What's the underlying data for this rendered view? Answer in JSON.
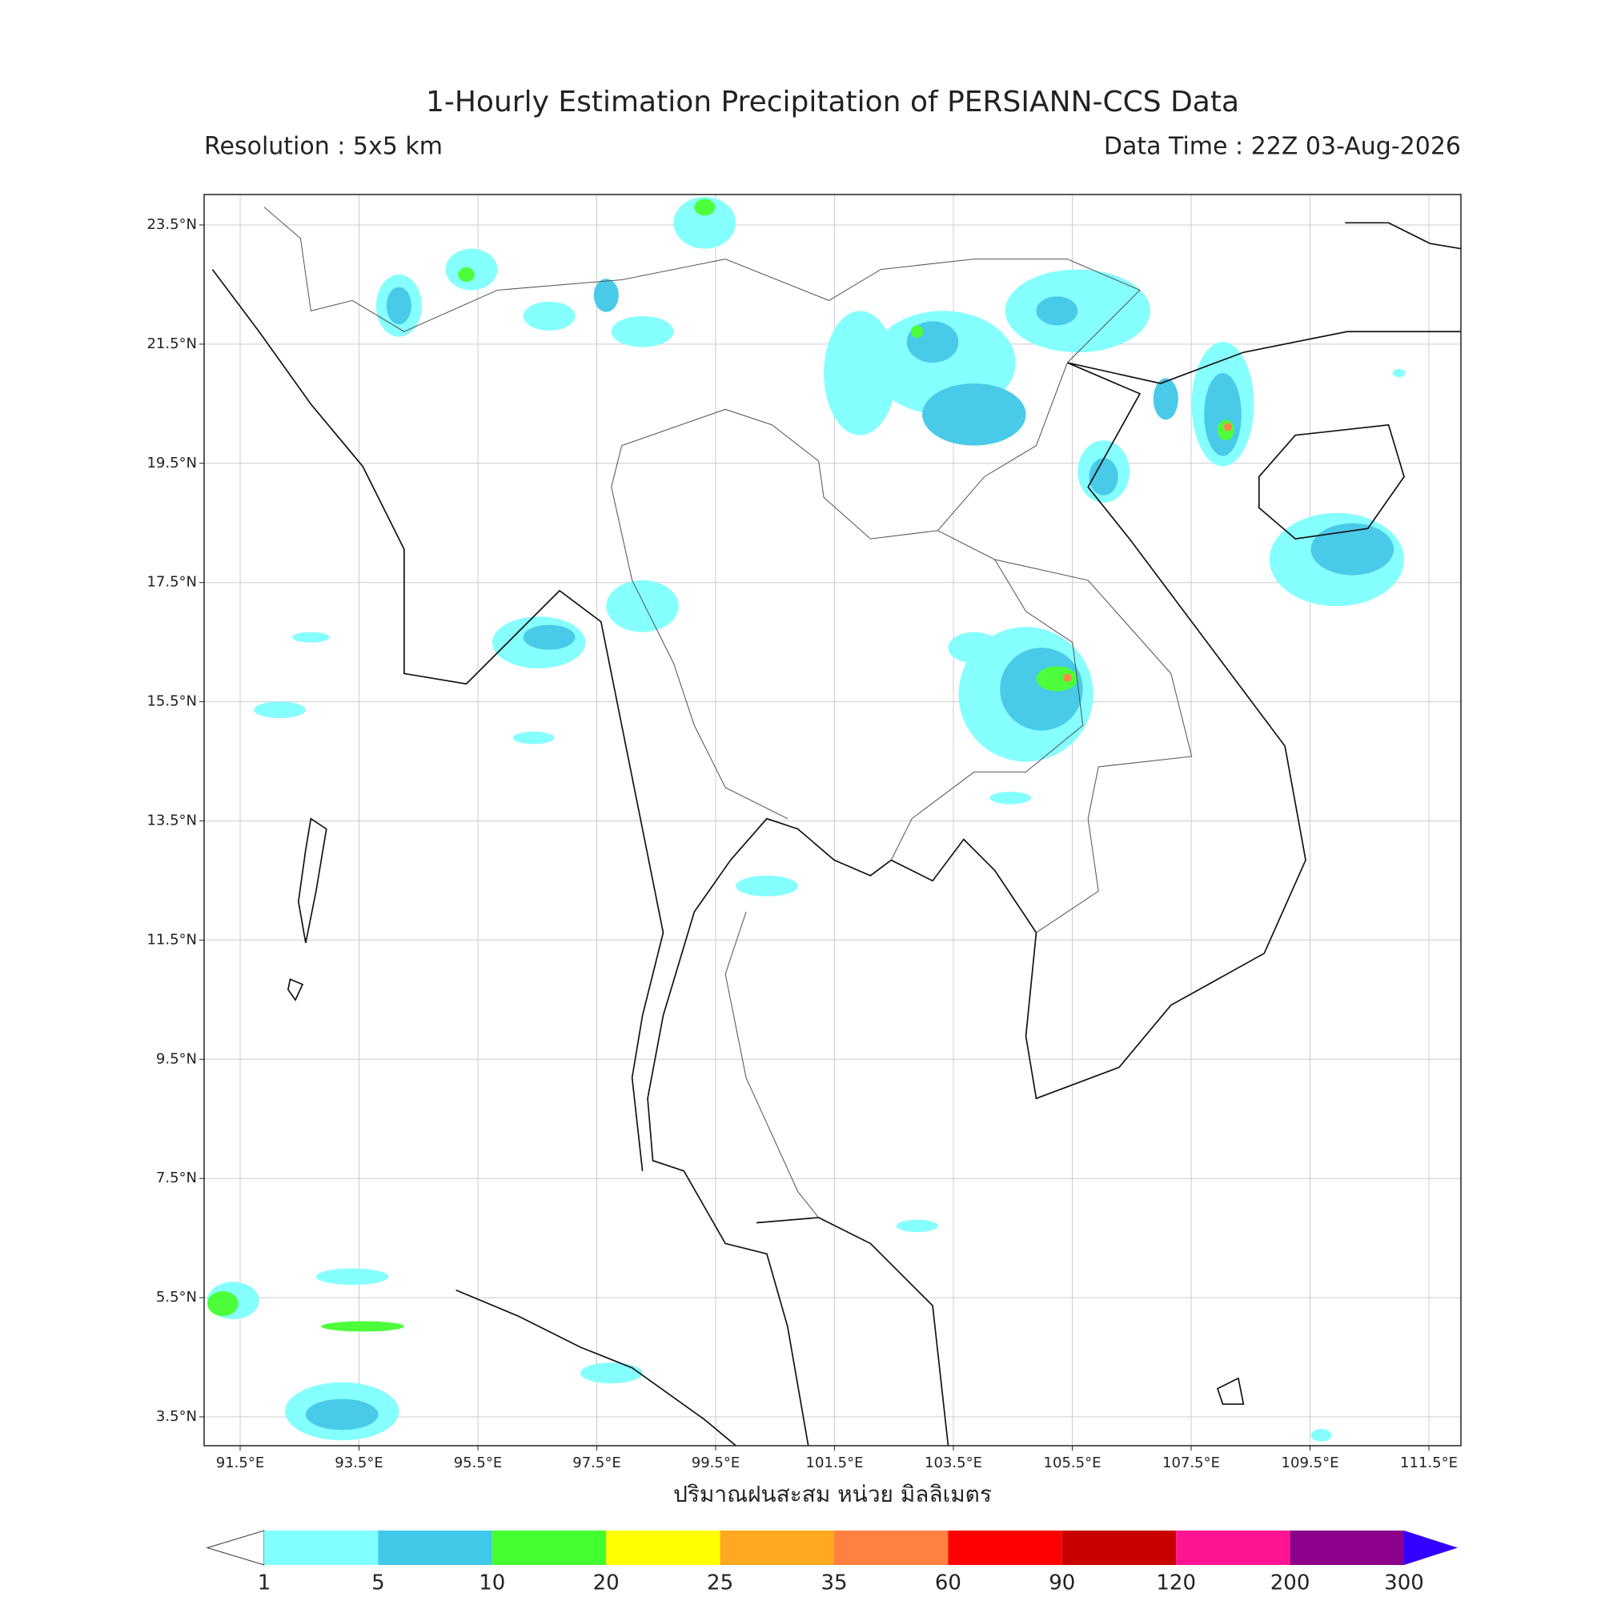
{
  "header": {
    "title": "1-Hourly Estimation Precipitation of PERSIANN-CCS Data",
    "resolution": "Resolution : 5x5 km",
    "data_time": "Data Time : 22Z 03-Aug-2026"
  },
  "map": {
    "lon_ticks": [
      {
        "value": 91.5,
        "label": "91.5°E"
      },
      {
        "value": 93.5,
        "label": "93.5°E"
      },
      {
        "value": 95.5,
        "label": "95.5°E"
      },
      {
        "value": 97.5,
        "label": "97.5°E"
      },
      {
        "value": 99.5,
        "label": "99.5°E"
      },
      {
        "value": 101.5,
        "label": "101.5°E"
      },
      {
        "value": 103.5,
        "label": "103.5°E"
      },
      {
        "value": 105.5,
        "label": "105.5°E"
      },
      {
        "value": 107.5,
        "label": "107.5°E"
      },
      {
        "value": 109.5,
        "label": "109.5°E"
      },
      {
        "value": 111.5,
        "label": "111.5°E"
      }
    ],
    "lat_ticks": [
      {
        "value": 23.5,
        "label": "23.5°N"
      },
      {
        "value": 21.5,
        "label": "21.5°N"
      },
      {
        "value": 19.5,
        "label": "19.5°N"
      },
      {
        "value": 17.5,
        "label": "17.5°N"
      },
      {
        "value": 15.5,
        "label": "15.5°N"
      },
      {
        "value": 13.5,
        "label": "13.5°N"
      },
      {
        "value": 11.5,
        "label": "11.5°N"
      },
      {
        "value": 9.5,
        "label": "9.5°N"
      },
      {
        "value": 7.5,
        "label": "7.5°N"
      },
      {
        "value": 5.5,
        "label": "5.5°N"
      },
      {
        "value": 3.5,
        "label": "3.5°N"
      }
    ],
    "x_label": "ปริมาณฝนสะสม หน่วย มิลลิเมตร"
  },
  "colorbar": {
    "levels": [
      1,
      5,
      10,
      20,
      25,
      35,
      60,
      90,
      120,
      200,
      300
    ],
    "colors": [
      "#80ffff",
      "#40c8e8",
      "#44ff30",
      "#ffff00",
      "#ffa820",
      "#ff8040",
      "#ff0000",
      "#c80000",
      "#ff1493",
      "#8b008b"
    ],
    "under_color": "#ffffff",
    "over_color": "#3300ff"
  }
}
